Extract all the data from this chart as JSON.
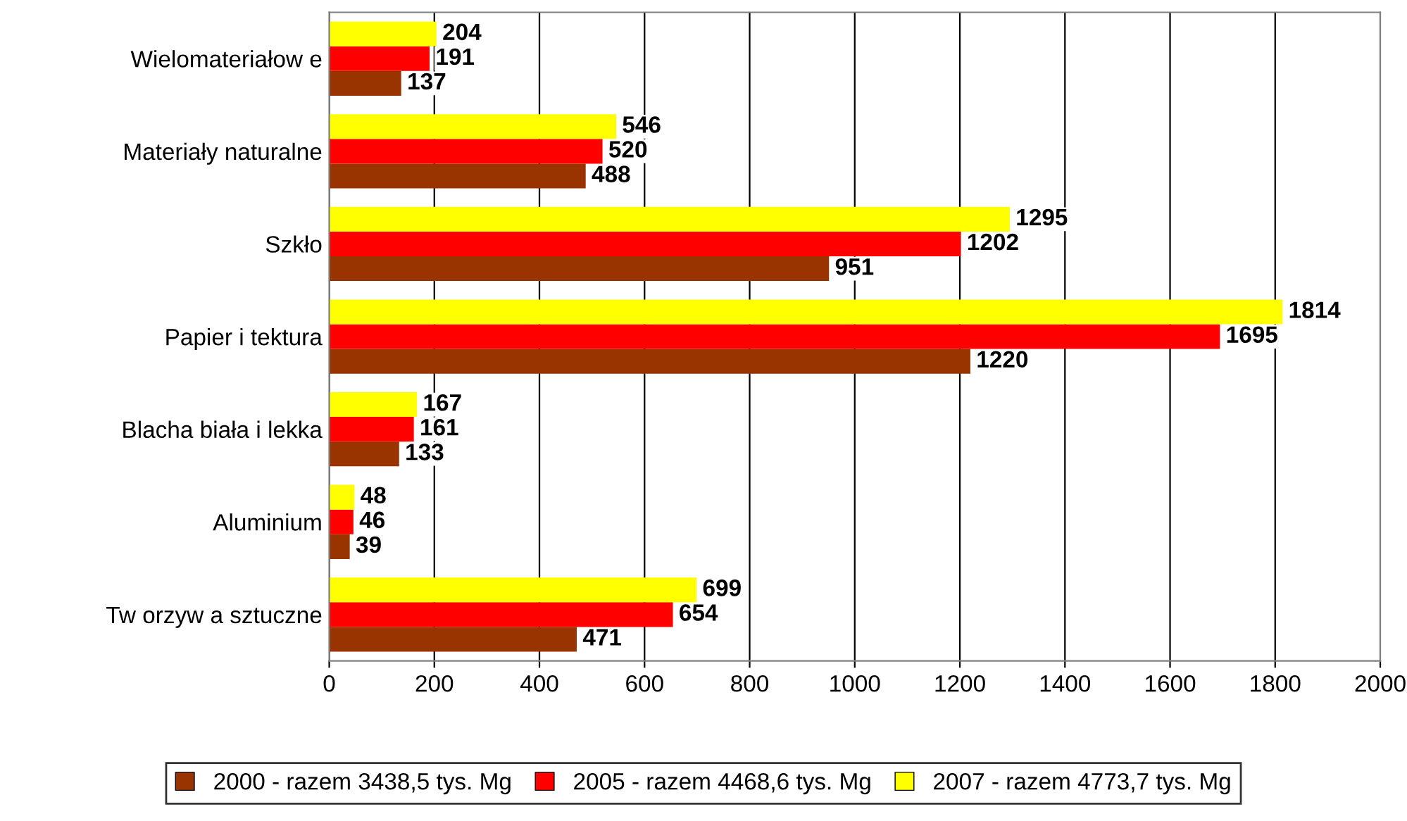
{
  "chart_data": {
    "type": "bar",
    "orientation": "horizontal",
    "categories": [
      "Wielomateriałow e",
      "Materiały naturalne",
      "Szkło",
      "Papier i tektura",
      "Blacha biała i lekka",
      "Aluminium",
      "Tw orzyw a sztuczne"
    ],
    "series": [
      {
        "name": "2000 - razem 3438,5 tys. Mg",
        "color": "#993300",
        "values": [
          137,
          488,
          951,
          1220,
          133,
          39,
          471
        ]
      },
      {
        "name": "2005 - razem 4468,6 tys. Mg",
        "color": "#ff0000",
        "values": [
          191,
          520,
          1202,
          1695,
          161,
          46,
          654
        ]
      },
      {
        "name": "2007 - razem 4773,7 tys. Mg",
        "color": "#ffff00",
        "values": [
          204,
          546,
          1295,
          1814,
          167,
          48,
          699
        ]
      }
    ],
    "xlim": [
      0,
      2000
    ],
    "xticks": [
      0,
      200,
      400,
      600,
      800,
      1000,
      1200,
      1400,
      1600,
      1800,
      2000
    ],
    "grid": "x",
    "legend": "bottom",
    "data_labels": true
  }
}
